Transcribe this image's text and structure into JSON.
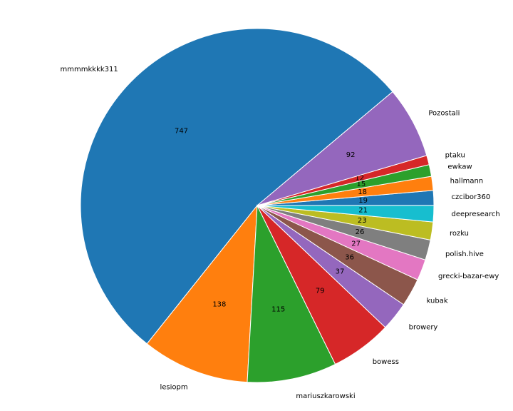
{
  "chart_data": {
    "type": "pie",
    "title": "",
    "labels": [
      "mmmmkkkk311",
      "lesiopm",
      "mariuszkarowski",
      "bowess",
      "browery",
      "kubak",
      "grecki-bazar-ewy",
      "polish.hive",
      "rozku",
      "deepresearch",
      "czcibor360",
      "hallmann",
      "ewkaw",
      "ptaku",
      "Pozostali"
    ],
    "values": [
      747,
      138,
      115,
      79,
      37,
      36,
      27,
      26,
      23,
      21,
      19,
      18,
      15,
      12,
      92
    ],
    "colors": [
      "#1f77b4",
      "#ff7f0e",
      "#2ca02c",
      "#d62728",
      "#9467bd",
      "#8c564b",
      "#e377c2",
      "#7f7f7f",
      "#bcbd22",
      "#17becf",
      "#1f77b4",
      "#ff7f0e",
      "#2ca02c",
      "#d62728",
      "#9467bd"
    ],
    "start_angle_deg": 40,
    "direction": "counterclockwise",
    "legend": "none"
  }
}
